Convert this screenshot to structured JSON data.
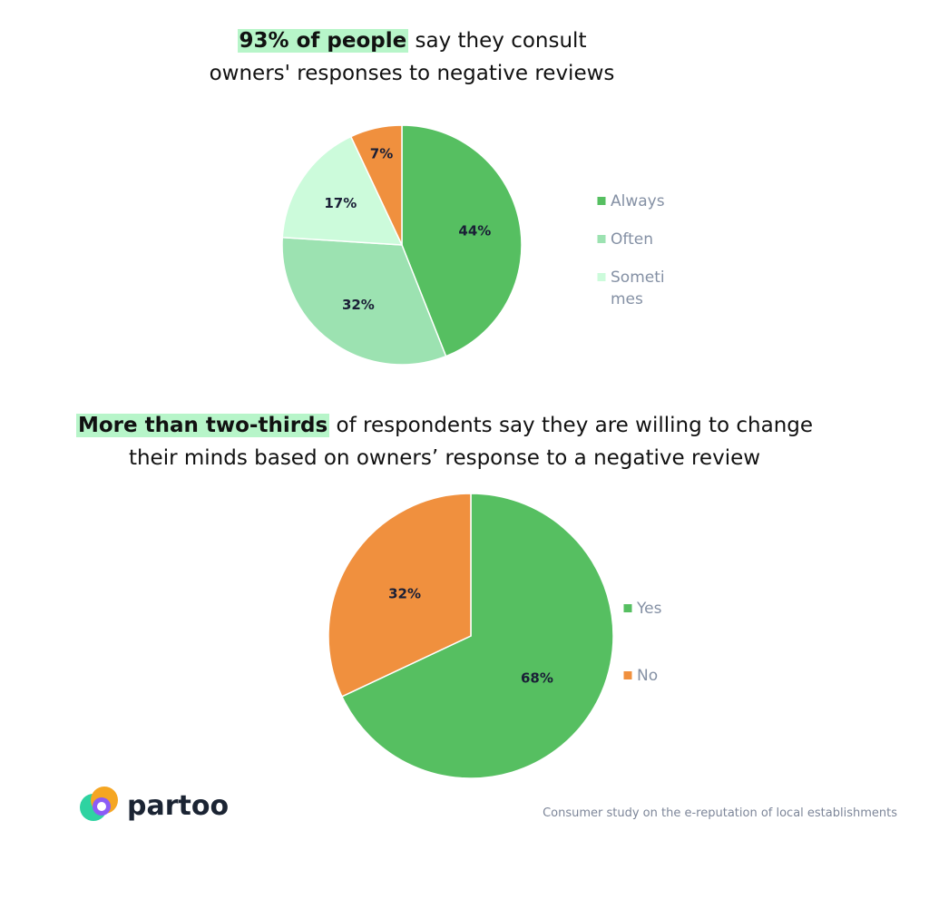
{
  "chart_data": [
    {
      "type": "pie",
      "title_highlight": "93% of people",
      "title_rest_1": "say they consult",
      "title_rest_2": "owners' responses to negative reviews",
      "slices": [
        {
          "name": "Always",
          "value": 44,
          "label": "44%",
          "color": "#56bf61"
        },
        {
          "name": "Often",
          "value": 32,
          "label": "32%",
          "color": "#9ce2b1"
        },
        {
          "name": "Sometimes",
          "value": 17,
          "label": "17%",
          "color": "#ccfbdb"
        },
        {
          "name": "",
          "value": 7,
          "label": "7%",
          "color": "#f0903e"
        }
      ],
      "legend": [
        {
          "lines": [
            "Always"
          ],
          "color": "#56bf61"
        },
        {
          "lines": [
            "Often"
          ],
          "color": "#9ce2b1"
        },
        {
          "lines": [
            "Someti",
            "mes"
          ],
          "color": "#ccfbdb"
        }
      ],
      "legend_position": "right"
    },
    {
      "type": "pie",
      "title_highlight": "More than two-thirds",
      "title_rest_1": "of respondents say they are willing to change",
      "title_rest_2": "their minds based on owners’ response to a negative review",
      "slices": [
        {
          "name": "Yes",
          "value": 68,
          "label": "68%",
          "color": "#56bf61"
        },
        {
          "name": "No",
          "value": 32,
          "label": "32%",
          "color": "#f0903e"
        }
      ],
      "legend": [
        {
          "lines": [
            "Yes"
          ],
          "color": "#56bf61"
        },
        {
          "lines": [
            "No"
          ],
          "color": "#f0903e"
        }
      ],
      "legend_position": "right"
    }
  ],
  "brand": {
    "name": "partoo",
    "logo_colors": [
      "#f5a623",
      "#ff5a8a",
      "#8b5cf6",
      "#2ed3a1"
    ]
  },
  "footnote": "Consumer study on the e-reputation of local establishments"
}
